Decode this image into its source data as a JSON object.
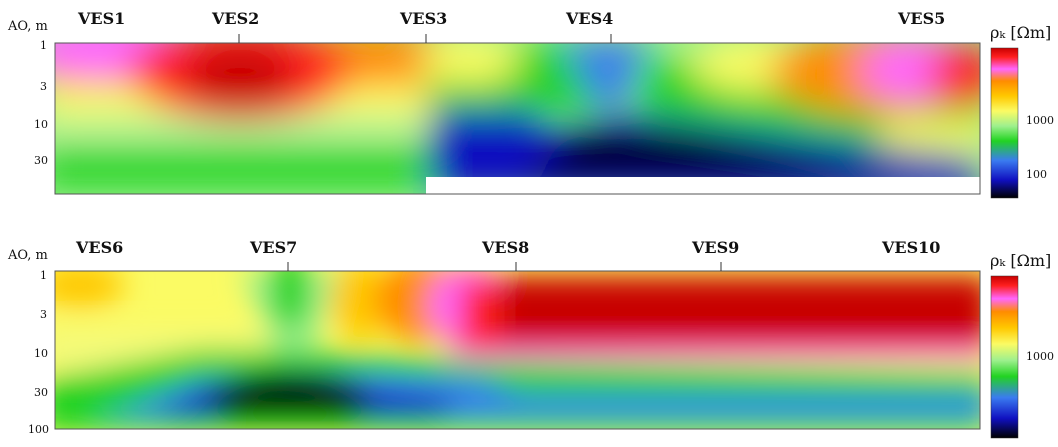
{
  "chart_data": [
    {
      "type": "heatmap",
      "ylabel": "AO, m",
      "ytick_labels": [
        "1",
        "3",
        "10",
        "30"
      ],
      "ves_labels": [
        "VES1",
        "VES2",
        "VES3",
        "VES4",
        "VES5"
      ],
      "colorbar": {
        "title": "ρₖ [Ωm]",
        "ticks": [
          "1000",
          "100"
        ]
      }
    },
    {
      "type": "heatmap",
      "ylabel": "AO, m",
      "ytick_labels": [
        "1",
        "3",
        "10",
        "30",
        "100"
      ],
      "ves_labels": [
        "VES6",
        "VES7",
        "VES8",
        "VES9",
        "VES10"
      ],
      "colorbar": {
        "title": "ρₖ [Ωm]",
        "ticks": [
          "1000"
        ]
      }
    }
  ],
  "colors": {
    "scale": [
      "#000000",
      "#1010c0",
      "#3a7cf0",
      "#22d322",
      "#9ef08e",
      "#fbfb64",
      "#ffc800",
      "#ff8c00",
      "#ff2020",
      "#ff66ff",
      "#c80000"
    ]
  }
}
